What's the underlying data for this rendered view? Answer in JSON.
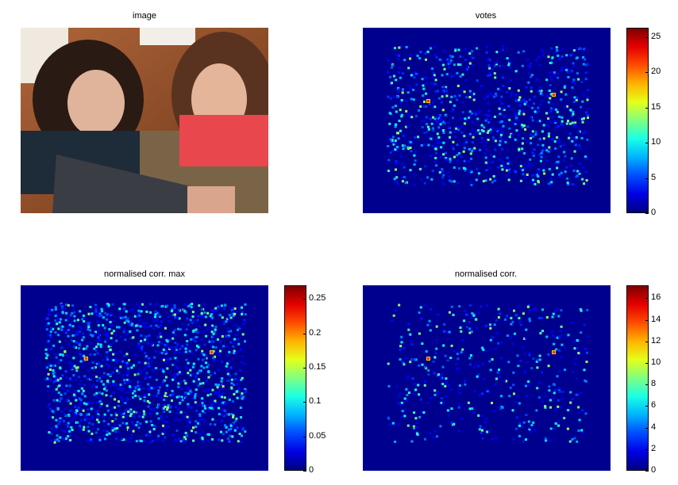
{
  "panels": {
    "image": {
      "title": "image"
    },
    "votes": {
      "title": "votes",
      "colorbar_ticks": [
        "0",
        "5",
        "10",
        "15",
        "20",
        "25"
      ],
      "colorbar_max": 26.3
    },
    "ncmax": {
      "title": "normalised corr. max",
      "colorbar_ticks": [
        "0",
        "0.05",
        "0.1",
        "0.15",
        "0.2",
        "0.25"
      ],
      "colorbar_max": 0.27
    },
    "nc": {
      "title": "normalised corr.",
      "colorbar_ticks": [
        "0",
        "2",
        "4",
        "6",
        "8",
        "10",
        "12",
        "14",
        "16"
      ],
      "colorbar_max": 17.2
    }
  },
  "colormap": "jet",
  "colors": {
    "background_heat": "#00008f",
    "peak": "#ff2a00"
  }
}
